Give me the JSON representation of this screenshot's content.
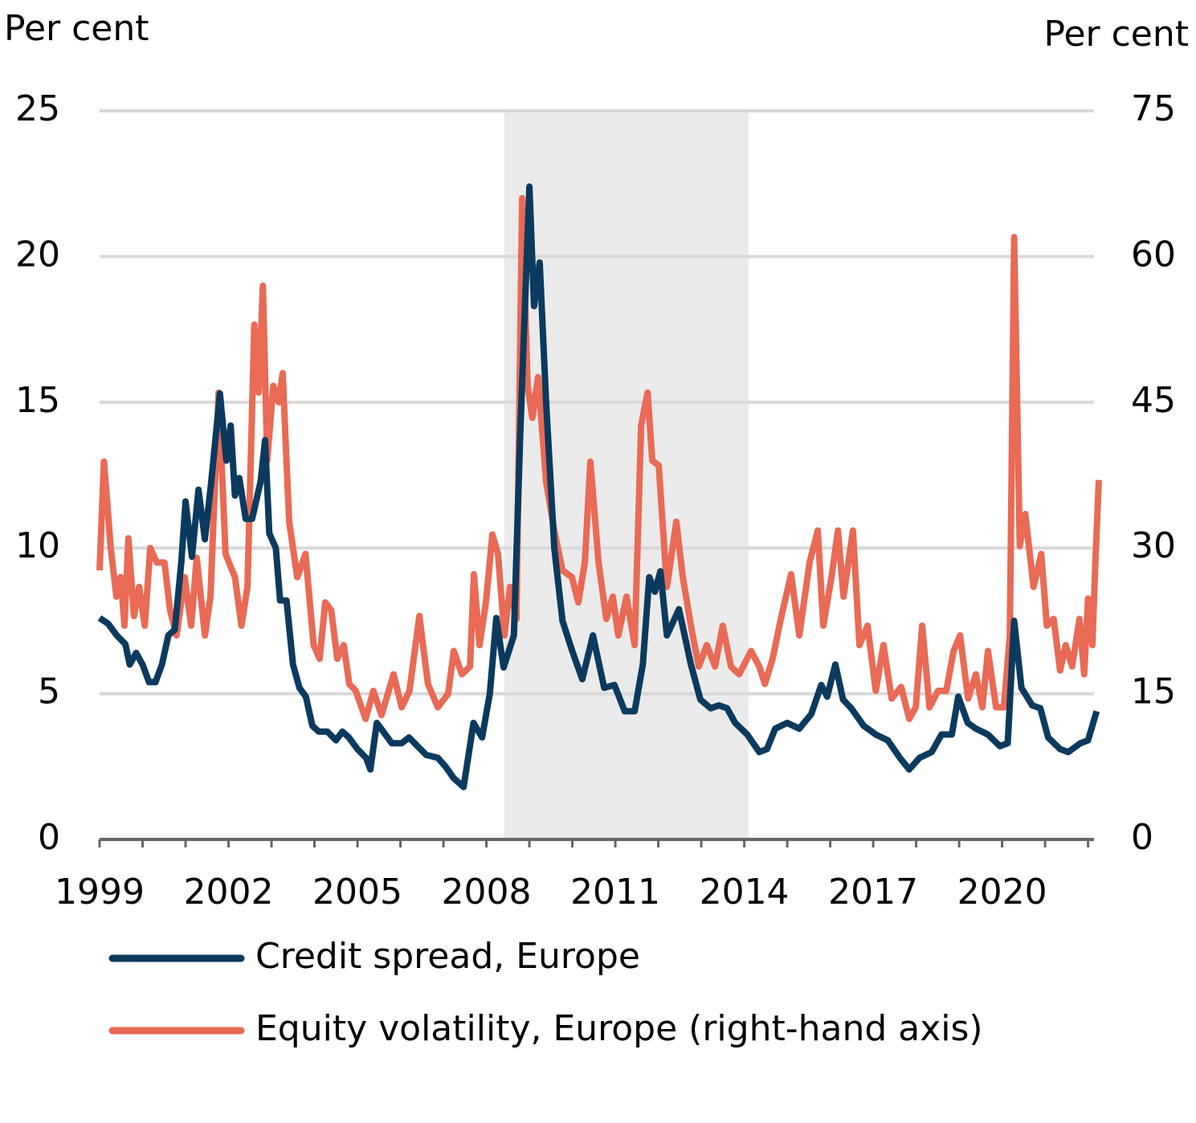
{
  "chart_data": {
    "type": "line",
    "y_label": "Per cent",
    "y2_label": "Per cent",
    "xlim": [
      1999,
      2022.25
    ],
    "xticks": [
      1999,
      2002,
      2005,
      2008,
      2011,
      2014,
      2017,
      2020
    ],
    "xminorticks": [
      1999,
      2000,
      2001,
      2002,
      2003,
      2004,
      2005,
      2006,
      2007,
      2008,
      2009,
      2010,
      2011,
      2012,
      2013,
      2014,
      2015,
      2016,
      2017,
      2018,
      2019,
      2020,
      2021,
      2022
    ],
    "ylim": [
      0,
      25
    ],
    "yticks": [
      0,
      5,
      10,
      15,
      20,
      25
    ],
    "y2lim": [
      0,
      75
    ],
    "y2ticks": [
      0,
      15,
      30,
      45,
      60,
      75
    ],
    "grid": true,
    "shaded_xrange": [
      2008.42,
      2014.1
    ],
    "shade_color": "#ebebeb",
    "series": [
      {
        "name": "Credit spread, Europe",
        "color": "#0b3a5e",
        "x": [
          1999.0,
          1999.2,
          1999.4,
          1999.6,
          1999.7,
          1999.85,
          2000.0,
          2000.15,
          2000.3,
          2000.45,
          2000.6,
          2000.75,
          2000.9,
          2001.0,
          2001.15,
          2001.3,
          2001.45,
          2001.6,
          2001.8,
          2001.95,
          2002.05,
          2002.15,
          2002.25,
          2002.4,
          2002.55,
          2002.75,
          2002.85,
          2002.95,
          2003.1,
          2003.2,
          2003.35,
          2003.5,
          2003.65,
          2003.8,
          2003.95,
          2004.1,
          2004.3,
          2004.5,
          2004.65,
          2004.8,
          2005.0,
          2005.2,
          2005.3,
          2005.45,
          2005.6,
          2005.8,
          2006.03,
          2006.2,
          2006.4,
          2006.6,
          2006.87,
          2007.05,
          2007.24,
          2007.47,
          2007.7,
          2007.9,
          2008.08,
          2008.23,
          2008.4,
          2008.64,
          2008.79,
          2009.0,
          2009.11,
          2009.24,
          2009.39,
          2009.58,
          2009.77,
          2009.99,
          2010.23,
          2010.48,
          2010.74,
          2010.98,
          2011.22,
          2011.45,
          2011.64,
          2011.79,
          2011.92,
          2012.05,
          2012.2,
          2012.48,
          2012.76,
          2012.98,
          2013.22,
          2013.41,
          2013.6,
          2013.79,
          2014.07,
          2014.35,
          2014.53,
          2014.72,
          2015.0,
          2015.28,
          2015.56,
          2015.79,
          2015.93,
          2016.12,
          2016.3,
          2016.49,
          2016.78,
          2017.06,
          2017.34,
          2017.62,
          2017.84,
          2018.08,
          2018.36,
          2018.59,
          2018.83,
          2018.98,
          2019.2,
          2019.39,
          2019.67,
          2019.95,
          2020.13,
          2020.28,
          2020.45,
          2020.7,
          2020.89,
          2021.07,
          2021.35,
          2021.54,
          2021.82,
          2022.0,
          2022.2
        ],
        "values": [
          7.6,
          7.4,
          7.0,
          6.7,
          6.0,
          6.4,
          6.0,
          5.4,
          5.4,
          6.0,
          7.0,
          7.2,
          9.5,
          11.6,
          9.7,
          12.0,
          10.3,
          12.3,
          15.3,
          13.0,
          14.2,
          11.8,
          12.4,
          11.0,
          11.0,
          12.3,
          13.7,
          10.5,
          10.0,
          8.2,
          8.2,
          6.0,
          5.2,
          4.9,
          3.9,
          3.7,
          3.7,
          3.4,
          3.7,
          3.5,
          3.1,
          2.8,
          2.4,
          4.0,
          3.7,
          3.3,
          3.3,
          3.5,
          3.2,
          2.9,
          2.8,
          2.5,
          2.1,
          1.8,
          4.0,
          3.5,
          5.0,
          7.6,
          5.9,
          7.0,
          14.0,
          22.4,
          18.3,
          19.8,
          15.0,
          10.0,
          7.5,
          6.5,
          5.5,
          7.0,
          5.2,
          5.3,
          4.4,
          4.4,
          6.0,
          9.0,
          8.5,
          9.2,
          7.0,
          7.9,
          6.0,
          4.8,
          4.5,
          4.6,
          4.5,
          4.0,
          3.6,
          3.0,
          3.1,
          3.8,
          4.0,
          3.8,
          4.3,
          5.3,
          4.9,
          6.0,
          4.8,
          4.5,
          3.9,
          3.6,
          3.4,
          2.8,
          2.4,
          2.8,
          3.0,
          3.6,
          3.6,
          4.9,
          4.0,
          3.8,
          3.6,
          3.2,
          3.3,
          7.5,
          5.2,
          4.6,
          4.5,
          3.5,
          3.1,
          3.0,
          3.3,
          3.4,
          4.4
        ]
      },
      {
        "name": "Equity volatility, Europe (right-hand axis)",
        "color": "#e96a55",
        "axis": "y2",
        "x": [
          1999.0,
          1999.1,
          1999.26,
          1999.39,
          1999.49,
          1999.58,
          1999.67,
          1999.8,
          1999.92,
          2000.05,
          2000.18,
          2000.33,
          2000.51,
          2000.64,
          2000.79,
          2000.98,
          2001.13,
          2001.26,
          2001.45,
          2001.58,
          2001.77,
          2001.93,
          2002.15,
          2002.3,
          2002.44,
          2002.6,
          2002.7,
          2002.8,
          2002.9,
          2003.04,
          2003.17,
          2003.26,
          2003.41,
          2003.6,
          2003.79,
          2003.98,
          2004.12,
          2004.25,
          2004.39,
          2004.53,
          2004.68,
          2004.81,
          2004.96,
          2005.19,
          2005.37,
          2005.56,
          2005.84,
          2006.03,
          2006.21,
          2006.44,
          2006.64,
          2006.87,
          2007.11,
          2007.24,
          2007.43,
          2007.62,
          2007.71,
          2007.84,
          2007.99,
          2008.14,
          2008.27,
          2008.42,
          2008.55,
          2008.7,
          2008.83,
          2008.96,
          2009.07,
          2009.2,
          2009.39,
          2009.58,
          2009.77,
          2009.99,
          2010.14,
          2010.29,
          2010.42,
          2010.61,
          2010.79,
          2010.94,
          2011.07,
          2011.26,
          2011.45,
          2011.6,
          2011.75,
          2011.86,
          2012.01,
          2012.2,
          2012.42,
          2012.57,
          2012.76,
          2012.94,
          2013.13,
          2013.32,
          2013.5,
          2013.69,
          2013.88,
          2014.16,
          2014.35,
          2014.48,
          2014.66,
          2014.85,
          2015.09,
          2015.28,
          2015.52,
          2015.71,
          2015.84,
          2016.03,
          2016.18,
          2016.31,
          2016.53,
          2016.68,
          2016.87,
          2017.06,
          2017.24,
          2017.43,
          2017.65,
          2017.84,
          2017.99,
          2018.14,
          2018.31,
          2018.51,
          2018.7,
          2018.87,
          2019.02,
          2019.21,
          2019.39,
          2019.54,
          2019.67,
          2019.86,
          2020.04,
          2020.18,
          2020.28,
          2020.41,
          2020.54,
          2020.73,
          2020.91,
          2021.04,
          2021.2,
          2021.35,
          2021.48,
          2021.63,
          2021.8,
          2021.91,
          2022.0,
          2022.1,
          2022.17,
          2022.25
        ],
        "values": [
          27.7,
          38.9,
          30,
          25,
          27,
          22,
          31,
          23,
          26,
          22,
          30,
          28.5,
          28.5,
          23.6,
          21,
          27,
          22,
          29,
          21,
          25,
          46,
          29.4,
          27,
          22,
          26,
          53,
          46,
          57,
          39,
          46.7,
          45,
          48,
          32.7,
          27,
          29.4,
          20,
          18.6,
          24.4,
          23.6,
          18.6,
          20,
          16,
          15.3,
          12.4,
          15.3,
          12.8,
          17,
          13.6,
          15.3,
          23,
          16,
          13.6,
          15,
          19.4,
          17,
          17.8,
          27.3,
          20,
          24.4,
          31.4,
          29.4,
          21,
          26,
          22.7,
          66,
          46.7,
          43.4,
          47.6,
          36.8,
          31.8,
          27.7,
          27,
          24.4,
          28.5,
          38.9,
          28.5,
          22.7,
          25,
          21,
          25,
          20,
          42.6,
          46,
          39,
          38.5,
          26,
          32.7,
          27,
          22,
          17.8,
          20,
          17.8,
          22,
          17.8,
          17,
          19.4,
          17.8,
          16,
          18.6,
          22.7,
          27.3,
          21,
          28.5,
          31.8,
          22,
          27,
          31.8,
          25,
          31.8,
          20,
          22,
          15.3,
          20,
          14.5,
          15.7,
          12.4,
          13.6,
          22,
          13.6,
          15.3,
          15.3,
          19.4,
          21,
          14.5,
          17,
          13.6,
          19.4,
          13.6,
          13.6,
          21,
          62,
          30.2,
          33.5,
          26,
          29.4,
          22,
          22.7,
          17.4,
          20,
          17.8,
          22.7,
          17,
          24.8,
          20,
          28.5,
          37
        ]
      }
    ]
  }
}
